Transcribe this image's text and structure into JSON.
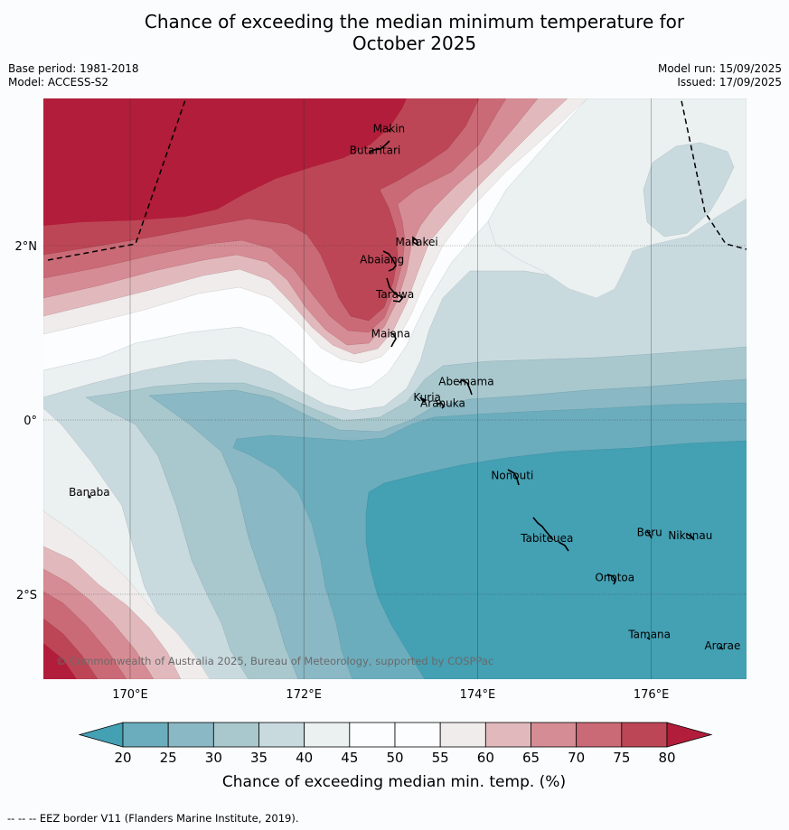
{
  "title_line1": "Chance of exceeding the median minimum temperature for",
  "title_line2": "October 2025",
  "base_period": "Base period: 1981-2018",
  "model": "Model: ACCESS-S2",
  "model_run": "Model run: 15/09/2025",
  "issued": "Issued: 17/09/2025",
  "copyright": "© Commonwealth of Australia 2025, Bureau of Meteorology, supported by COSPPac",
  "footer": "-- -- -- EEZ border V11 (Flanders Marine Institute, 2019).",
  "lat_ticks": [
    {
      "lat": 2,
      "label": "2°N"
    },
    {
      "lat": 0,
      "label": "0°"
    },
    {
      "lat": -2,
      "label": "2°S"
    }
  ],
  "lon_ticks": [
    {
      "lon": 170,
      "label": "170°E"
    },
    {
      "lon": 172,
      "label": "172°E"
    },
    {
      "lon": 174,
      "label": "174°E"
    },
    {
      "lon": 176,
      "label": "176°E"
    }
  ],
  "places": [
    {
      "name": "Makin",
      "lon": 172.98,
      "lat": 3.3
    },
    {
      "name": "Butaritari",
      "lon": 172.82,
      "lat": 3.05
    },
    {
      "name": "Marakei",
      "lon": 173.3,
      "lat": 2.0
    },
    {
      "name": "Abaiang",
      "lon": 172.9,
      "lat": 1.8
    },
    {
      "name": "Tarawa",
      "lon": 173.05,
      "lat": 1.4
    },
    {
      "name": "Maiana",
      "lon": 173.0,
      "lat": 0.95
    },
    {
      "name": "Abemama",
      "lon": 173.87,
      "lat": 0.4
    },
    {
      "name": "Kuria",
      "lon": 173.42,
      "lat": 0.22
    },
    {
      "name": "Aranuka",
      "lon": 173.6,
      "lat": 0.15
    },
    {
      "name": "Banaba",
      "lon": 169.53,
      "lat": -0.87
    },
    {
      "name": "Nonouti",
      "lon": 174.4,
      "lat": -0.68
    },
    {
      "name": "Tabiteuea",
      "lon": 174.8,
      "lat": -1.4
    },
    {
      "name": "Beru",
      "lon": 175.98,
      "lat": -1.33
    },
    {
      "name": "Nikunau",
      "lon": 176.45,
      "lat": -1.37
    },
    {
      "name": "Onotoa",
      "lon": 175.58,
      "lat": -1.85
    },
    {
      "name": "Tamana",
      "lon": 175.98,
      "lat": -2.5
    },
    {
      "name": "Arorae",
      "lon": 176.82,
      "lat": -2.63
    }
  ],
  "colorbar": {
    "label": "Chance of exceeding median min. temp. (%)",
    "ticks": [
      "20",
      "25",
      "30",
      "35",
      "40",
      "45",
      "50",
      "55",
      "60",
      "65",
      "70",
      "75",
      "80"
    ],
    "colors": [
      "#44a0b3",
      "#6badbd",
      "#8ab8c4",
      "#a8c8ce",
      "#c9dadf",
      "#ebf0f1",
      "#fcfdfe",
      "#fcfdfe",
      "#efeceb",
      "#e1b9bd",
      "#d68c94",
      "#ca6a76",
      "#bd4656",
      "#b11d3a"
    ]
  }
}
